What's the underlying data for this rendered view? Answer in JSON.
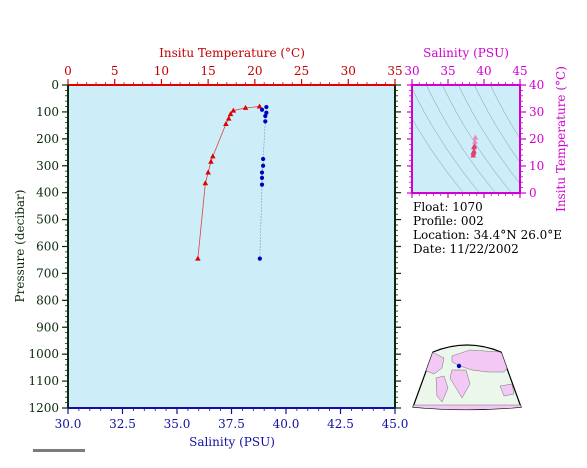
{
  "chart_data": [
    {
      "type": "line+scatter",
      "top_axis": {
        "label": "Insitu Temperature (°C)",
        "range": [
          0,
          35
        ],
        "ticks": [
          "0",
          "5",
          "10",
          "15",
          "20",
          "25",
          "30",
          "35"
        ],
        "color": "#c00000"
      },
      "bottom_axis": {
        "label": "Salinity (PSU)",
        "range": [
          30,
          45
        ],
        "ticks": [
          "30.0",
          "32.5",
          "35.0",
          "37.5",
          "40.0",
          "42.5",
          "45.0"
        ],
        "color": "#1010a0"
      },
      "left_axis": {
        "label": "Pressure (decibar)",
        "range": [
          0,
          1200
        ],
        "inverted": true,
        "ticks": [
          "0",
          "100",
          "200",
          "300",
          "400",
          "500",
          "600",
          "700",
          "800",
          "900",
          "1000",
          "1100",
          "1200"
        ]
      },
      "series": [
        {
          "name": "Insitu Temperature",
          "color": "#e00000",
          "marker": "triangle",
          "points": [
            {
              "x": 20.5,
              "p": 80
            },
            {
              "x": 19.0,
              "p": 85
            },
            {
              "x": 17.7,
              "p": 95
            },
            {
              "x": 17.4,
              "p": 108
            },
            {
              "x": 17.2,
              "p": 125
            },
            {
              "x": 16.9,
              "p": 145
            },
            {
              "x": 15.5,
              "p": 265
            },
            {
              "x": 15.3,
              "p": 285
            },
            {
              "x": 15.0,
              "p": 325
            },
            {
              "x": 14.7,
              "p": 365
            },
            {
              "x": 13.9,
              "p": 645
            }
          ]
        },
        {
          "name": "Salinity",
          "color": "#0000c0",
          "marker": "circle",
          "points": [
            {
              "x": 39.1,
              "p": 82
            },
            {
              "x": 38.9,
              "p": 92
            },
            {
              "x": 39.1,
              "p": 103
            },
            {
              "x": 39.05,
              "p": 115
            },
            {
              "x": 39.05,
              "p": 135
            },
            {
              "x": 38.95,
              "p": 275
            },
            {
              "x": 38.95,
              "p": 300
            },
            {
              "x": 38.9,
              "p": 325
            },
            {
              "x": 38.9,
              "p": 345
            },
            {
              "x": 38.9,
              "p": 370
            },
            {
              "x": 38.8,
              "p": 645
            }
          ]
        }
      ]
    },
    {
      "type": "scatter",
      "x_axis": {
        "label": "Salinity (PSU)",
        "range": [
          30,
          45
        ],
        "ticks": [
          "30",
          "35",
          "40",
          "45"
        ],
        "color": "#d000d0"
      },
      "y_axis": {
        "label": "Insitu Temperature (°C)",
        "range": [
          0,
          40
        ],
        "ticks": [
          "0",
          "10",
          "20",
          "30",
          "40"
        ],
        "color": "#d000d0"
      },
      "points": [
        {
          "s": 38.8,
          "t": 20.5
        },
        {
          "s": 38.75,
          "t": 19.0
        },
        {
          "s": 38.7,
          "t": 17.7
        },
        {
          "s": 38.65,
          "t": 17.2
        },
        {
          "s": 38.6,
          "t": 16.9
        },
        {
          "s": 38.6,
          "t": 15.5
        },
        {
          "s": 38.55,
          "t": 15.0
        },
        {
          "s": 38.5,
          "t": 14.7
        },
        {
          "s": 38.5,
          "t": 13.9
        }
      ]
    }
  ],
  "info": {
    "float": "Float:  1070",
    "profile": "Profile:  002",
    "location": "Location:  34.4°N  26.0°E",
    "date": "Date:  11/22/2002"
  },
  "colors": {
    "plot_bg": "#cdeef8",
    "map_ocean": "#eaf7ea",
    "map_land": "#f4c8f4"
  }
}
